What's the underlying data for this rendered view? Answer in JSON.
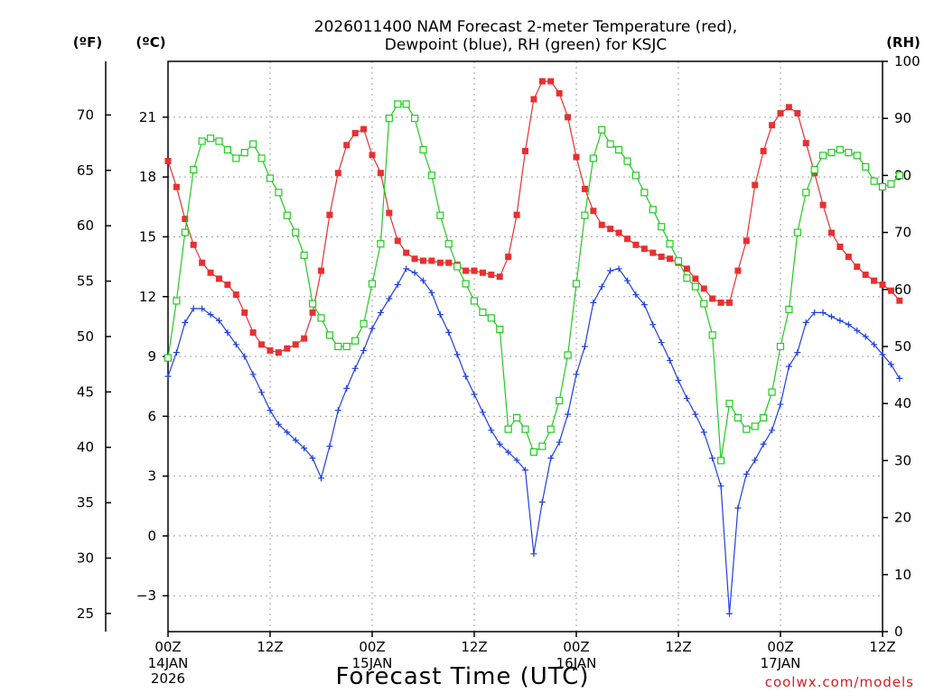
{
  "chart_data": {
    "type": "line",
    "title_line1": "2026011400 NAM Forecast 2-meter Temperature (red),",
    "title_line2": "Dewpoint (blue), RH (green) for KSJC",
    "xlabel": "Forecast Time (UTC)",
    "credit": "coolwx.com/models",
    "unit_left_f": "(ºF)",
    "unit_left_c": "(ºC)",
    "unit_right_rh": "(RH)",
    "x_range_hours": [
      0,
      84
    ],
    "x_step_hours": 1,
    "x_ticks": [
      {
        "hour": 0,
        "label": "00Z",
        "date": "14JAN",
        "year": "2026"
      },
      {
        "hour": 12,
        "label": "12Z",
        "date": "",
        "year": ""
      },
      {
        "hour": 24,
        "label": "00Z",
        "date": "15JAN",
        "year": ""
      },
      {
        "hour": 36,
        "label": "12Z",
        "date": "",
        "year": ""
      },
      {
        "hour": 48,
        "label": "00Z",
        "date": "16JAN",
        "year": ""
      },
      {
        "hour": 60,
        "label": "12Z",
        "date": "",
        "year": ""
      },
      {
        "hour": 72,
        "label": "00Z",
        "date": "17JAN",
        "year": ""
      },
      {
        "hour": 84,
        "label": "12Z",
        "date": "",
        "year": ""
      }
    ],
    "celsius_axis": {
      "range": [
        -4.8,
        23.8
      ],
      "ticks": [
        "-3",
        "0",
        "3",
        "6",
        "9",
        "12",
        "15",
        "18",
        "21"
      ]
    },
    "fahrenheit_axis": {
      "ticks": [
        "25",
        "30",
        "35",
        "40",
        "45",
        "50",
        "55",
        "60",
        "65",
        "70"
      ]
    },
    "rh_axis": {
      "range": [
        0,
        100
      ],
      "ticks": [
        "0",
        "10",
        "20",
        "30",
        "40",
        "50",
        "60",
        "70",
        "80",
        "90",
        "100"
      ]
    },
    "grid": true,
    "series": [
      {
        "name": "Temperature",
        "unit": "°C",
        "color": "#e83030",
        "marker": "filled-square",
        "values": [
          18.8,
          17.5,
          15.9,
          14.6,
          13.7,
          13.2,
          12.9,
          12.6,
          12.1,
          11.2,
          10.2,
          9.6,
          9.3,
          9.2,
          9.4,
          9.6,
          9.9,
          11.2,
          13.3,
          16.1,
          18.2,
          19.6,
          20.2,
          20.4,
          19.1,
          18.2,
          16.2,
          14.8,
          14.2,
          13.9,
          13.8,
          13.8,
          13.7,
          13.7,
          13.6,
          13.3,
          13.3,
          13.2,
          13.1,
          13.0,
          14.0,
          16.1,
          19.3,
          21.9,
          22.8,
          22.8,
          22.2,
          21.0,
          19.0,
          17.4,
          16.3,
          15.6,
          15.4,
          15.2,
          14.9,
          14.6,
          14.4,
          14.2,
          14.0,
          13.9,
          13.7,
          13.4,
          12.9,
          12.4,
          11.9,
          11.7,
          11.7,
          13.3,
          14.8,
          17.6,
          19.3,
          20.6,
          21.2,
          21.5,
          21.2,
          19.7,
          18.2,
          16.6,
          15.2,
          14.5,
          14.0,
          13.5,
          13.1,
          12.8,
          12.6,
          12.3,
          11.8
        ]
      },
      {
        "name": "Dewpoint",
        "unit": "°C",
        "color": "#2040e0",
        "marker": "plus",
        "values": [
          8.0,
          9.2,
          10.7,
          11.4,
          11.4,
          11.1,
          10.8,
          10.2,
          9.6,
          9.0,
          8.1,
          7.2,
          6.3,
          5.6,
          5.2,
          4.8,
          4.4,
          3.9,
          2.9,
          4.5,
          6.3,
          7.4,
          8.4,
          9.3,
          10.4,
          11.2,
          11.9,
          12.6,
          13.4,
          13.2,
          12.8,
          12.2,
          11.1,
          10.2,
          9.1,
          8.0,
          7.1,
          6.2,
          5.3,
          4.6,
          4.2,
          3.8,
          3.3,
          -0.9,
          1.7,
          3.9,
          4.7,
          6.1,
          8.1,
          9.5,
          11.7,
          12.5,
          13.3,
          13.4,
          12.8,
          12.1,
          11.6,
          10.6,
          9.7,
          8.8,
          7.8,
          6.9,
          6.1,
          5.2,
          3.9,
          2.5,
          -3.9,
          1.4,
          3.1,
          3.8,
          4.6,
          5.3,
          6.6,
          8.5,
          9.2,
          10.7,
          11.2,
          11.2,
          11.0,
          10.8,
          10.6,
          10.3,
          10.0,
          9.6,
          9.1,
          8.6,
          7.9
        ]
      },
      {
        "name": "RH",
        "unit": "%",
        "color": "#20cc20",
        "marker": "open-square",
        "values": [
          48.0,
          58.0,
          70.0,
          81.0,
          86.0,
          86.5,
          86.0,
          84.5,
          83.0,
          84.0,
          85.5,
          83.0,
          79.5,
          77.0,
          73.0,
          70.0,
          66.0,
          57.5,
          55.0,
          52.0,
          50.0,
          50.0,
          51.0,
          54.0,
          61.0,
          68.0,
          90.0,
          92.5,
          92.5,
          90.0,
          84.5,
          80.0,
          73.0,
          68.0,
          64.0,
          61.0,
          58.0,
          56.0,
          55.0,
          53.0,
          35.5,
          37.5,
          35.5,
          31.5,
          32.5,
          35.5,
          40.5,
          48.5,
          61.0,
          73.0,
          83.0,
          88.0,
          85.5,
          84.5,
          82.5,
          80.0,
          77.0,
          74.0,
          71.0,
          68.0,
          65.0,
          62.0,
          60.5,
          57.5,
          52.0,
          30.0,
          40.0,
          37.5,
          35.5,
          36.0,
          37.5,
          42.0,
          50.0,
          56.5,
          70.0,
          77.0,
          81.0,
          83.5,
          84.0,
          84.5,
          84.0,
          83.5,
          81.5,
          79.0,
          78.0,
          78.5,
          80.0
        ]
      }
    ]
  }
}
